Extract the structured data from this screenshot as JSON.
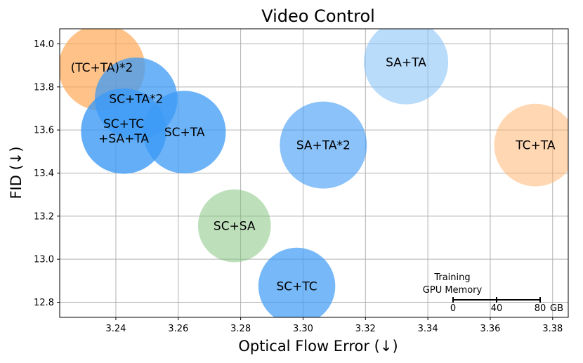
{
  "chart_data": {
    "type": "scatter",
    "title": "Video Control",
    "xlabel": "Optical Flow Error (↓)",
    "ylabel": "FID (↓)",
    "xlim": [
      3.222,
      3.385
    ],
    "ylim": [
      12.73,
      14.07
    ],
    "xticks": [
      "3.24",
      "3.26",
      "3.28",
      "3.30",
      "3.32",
      "3.34",
      "3.36",
      "3.38"
    ],
    "yticks": [
      "12.8",
      "13.0",
      "13.2",
      "13.4",
      "13.6",
      "13.8",
      "14.0"
    ],
    "grid": true,
    "points": [
      {
        "label": "(TC+TA)*2",
        "x": 3.2355,
        "y": 13.89,
        "memory_gb": 98,
        "color": "#ffa857",
        "opacity": 0.7
      },
      {
        "label": "SC+TA*2",
        "x": 3.2465,
        "y": 13.745,
        "memory_gb": 90,
        "color": "#3c9af5",
        "opacity": 0.75
      },
      {
        "label": "SC+TC\n+SA+TA",
        "x": 3.2425,
        "y": 13.595,
        "memory_gb": 96,
        "color": "#3c9af5",
        "opacity": 0.8
      },
      {
        "label": "SC+TA",
        "x": 3.262,
        "y": 13.59,
        "memory_gb": 90,
        "color": "#3c9af5",
        "opacity": 0.75
      },
      {
        "label": "SC+SA",
        "x": 3.278,
        "y": 13.155,
        "memory_gb": 70,
        "color": "#7cc177",
        "opacity": 0.5
      },
      {
        "label": "SC+TC",
        "x": 3.298,
        "y": 12.875,
        "memory_gb": 78,
        "color": "#3c9af5",
        "opacity": 0.7
      },
      {
        "label": "SA+TA*2",
        "x": 3.3065,
        "y": 13.53,
        "memory_gb": 100,
        "color": "#3c9af5",
        "opacity": 0.6
      },
      {
        "label": "SA+TA",
        "x": 3.333,
        "y": 13.915,
        "memory_gb": 94,
        "color": "#8cc4f8",
        "opacity": 0.6
      },
      {
        "label": "TC+TA",
        "x": 3.3745,
        "y": 13.53,
        "memory_gb": 90,
        "color": "#ffb268",
        "opacity": 0.5
      }
    ],
    "memory_legend": {
      "title_line1": "Training",
      "title_line2": "GPU Memory",
      "ticks": [
        "0",
        "40",
        "80"
      ],
      "tick_values_gb": [
        0,
        40,
        80
      ],
      "unit": "GB"
    }
  }
}
